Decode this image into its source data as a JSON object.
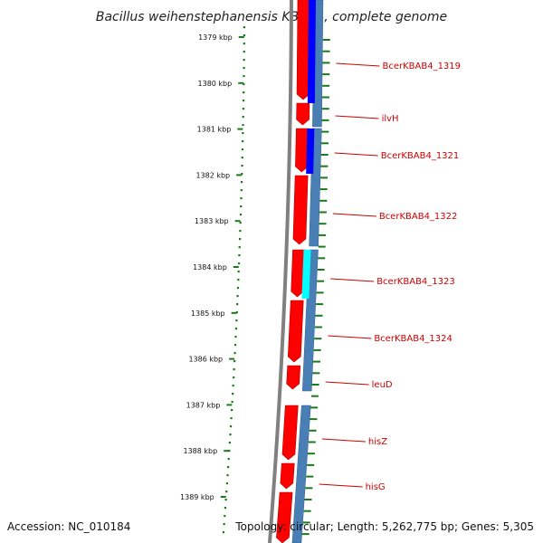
{
  "title": "Bacillus weihenstephanensis KBAB4, complete genome",
  "footer": {
    "accession": "Accession: NC_010184",
    "summary": "Topology: circular; Length: 5,262,775 bp; Genes: 5,305"
  },
  "colors": {
    "background": "#ffffff",
    "backbone": "#808080",
    "forward_gene": "#ff0000",
    "reverse_track": "#4a7fb5",
    "blue_feature": "#0000ff",
    "cyan_feature": "#00ffff",
    "tick": "#1a7a1a",
    "label": "#cc0000"
  },
  "ticks": [
    {
      "kbp": 1379,
      "label": "1379 kbp"
    },
    {
      "kbp": 1380,
      "label": "1380 kbp"
    },
    {
      "kbp": 1381,
      "label": "1381 kbp"
    },
    {
      "kbp": 1382,
      "label": "1382 kbp"
    },
    {
      "kbp": 1383,
      "label": "1383 kbp"
    },
    {
      "kbp": 1384,
      "label": "1384 kbp"
    },
    {
      "kbp": 1385,
      "label": "1385 kbp"
    },
    {
      "kbp": 1386,
      "label": "1386 kbp"
    },
    {
      "kbp": 1387,
      "label": "1387 kbp"
    },
    {
      "kbp": 1388,
      "label": "1388 kbp"
    },
    {
      "kbp": 1389,
      "label": "1389 kbp"
    }
  ],
  "genes": [
    {
      "label": "BcerKBAB4_1319"
    },
    {
      "label": "ilvH"
    },
    {
      "label": "BcerKBAB4_1321"
    },
    {
      "label": "BcerKBAB4_1322"
    },
    {
      "label": "BcerKBAB4_1323"
    },
    {
      "label": "BcerKBAB4_1324"
    },
    {
      "label": "leuD"
    },
    {
      "label": "hisZ"
    },
    {
      "label": "hisG"
    }
  ]
}
